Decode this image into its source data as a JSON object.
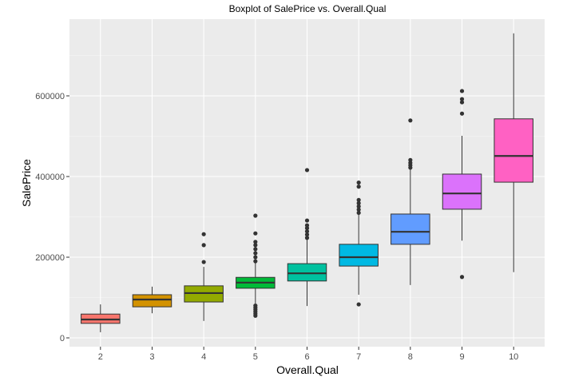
{
  "chart_data": {
    "type": "boxplot",
    "title": "Boxplot of SalePrice vs. Overall.Qual",
    "xlabel": "Overall.Qual",
    "ylabel": "SalePrice",
    "ylim": [
      -20000,
      780000
    ],
    "yticks": [
      0,
      200000,
      400000,
      600000
    ],
    "ytick_labels": [
      "0",
      "200000",
      "400000",
      "600000"
    ],
    "grid": true,
    "legend": "none",
    "categories": [
      "2",
      "3",
      "4",
      "5",
      "6",
      "7",
      "8",
      "9",
      "10"
    ],
    "boxes": [
      {
        "category": "2",
        "color": "#F8766D",
        "lower": 14000,
        "q1": 36000,
        "median": 45500,
        "q3": 59000,
        "upper": 83000,
        "outliers": []
      },
      {
        "category": "3",
        "color": "#D39200",
        "lower": 61000,
        "q1": 77000,
        "median": 95000,
        "q3": 107000,
        "upper": 127000,
        "outliers": []
      },
      {
        "category": "4",
        "color": "#93AA00",
        "lower": 42000,
        "q1": 89000,
        "median": 111000,
        "q3": 129000,
        "upper": 176000,
        "outliers": [
          188000,
          230000,
          257000
        ]
      },
      {
        "category": "5",
        "color": "#00BA38",
        "lower": 85000,
        "q1": 123000,
        "median": 137000,
        "q3": 150000,
        "upper": 186000,
        "outliers": [
          55000,
          60000,
          65000,
          70000,
          75000,
          80000,
          190000,
          200000,
          210000,
          220000,
          230000,
          238000,
          259000,
          303000
        ]
      },
      {
        "category": "6",
        "color": "#00C19F",
        "lower": 79000,
        "q1": 141000,
        "median": 160000,
        "q3": 184000,
        "upper": 244000,
        "outliers": [
          248000,
          256000,
          264000,
          272000,
          279000,
          291000,
          416000
        ]
      },
      {
        "category": "7",
        "color": "#00B9E3",
        "lower": 107000,
        "q1": 178000,
        "median": 200000,
        "q3": 232000,
        "upper": 307000,
        "outliers": [
          83000,
          310000,
          318000,
          326000,
          334000,
          342000,
          375000,
          385000
        ]
      },
      {
        "category": "8",
        "color": "#619CFF",
        "lower": 131000,
        "q1": 232000,
        "median": 263000,
        "q3": 307000,
        "upper": 420000,
        "outliers": [
          422000,
          428000,
          434000,
          441000,
          539000
        ]
      },
      {
        "category": "9",
        "color": "#DB72FB",
        "lower": 241000,
        "q1": 319000,
        "median": 358000,
        "q3": 406000,
        "upper": 501000,
        "outliers": [
          151000,
          556000,
          584000,
          592000,
          612000
        ]
      },
      {
        "category": "10",
        "color": "#FF61C3",
        "lower": 163000,
        "q1": 386000,
        "median": 451000,
        "q3": 543000,
        "upper": 755000,
        "outliers": []
      }
    ]
  }
}
